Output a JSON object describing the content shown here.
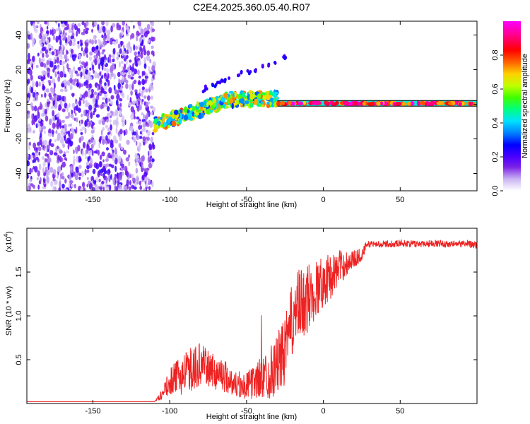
{
  "title": "C2E4.2025.360.05.40.R07",
  "colors": {
    "snr_line": "#ee2222",
    "axis": "#000000",
    "background": "#ffffff",
    "tone_line": "#000000"
  },
  "chart_data": [
    {
      "type": "heatmap",
      "name": "spectrogram",
      "xlabel": "Height of straight line (km)",
      "ylabel": "Frequency (Hz)",
      "xlim": [
        -193,
        100
      ],
      "ylim": [
        -50,
        48
      ],
      "xticks": [
        -150,
        -100,
        -50,
        0,
        50
      ],
      "xtick_labels": [
        "-150",
        "-100",
        "-50",
        "0",
        "50"
      ],
      "yticks": [
        -40,
        -20,
        0,
        20,
        40
      ],
      "ytick_labels": [
        "-40",
        "-20",
        "0",
        "20",
        "40"
      ],
      "colorbar": {
        "label": "Normalized spectral amplitude",
        "range": [
          0,
          1
        ],
        "ticks": [
          0.0,
          0.2,
          0.4,
          0.6,
          0.8
        ],
        "tick_labels": [
          "0.0",
          "0.2",
          "0.4",
          "0.6",
          "0.8"
        ],
        "colormap": [
          "#ffffff",
          "#c9b3f2",
          "#7b22e6",
          "#4b00ff",
          "#0000ff",
          "#0080ff",
          "#00e0ff",
          "#00ff80",
          "#40ff00",
          "#c0ff00",
          "#ffd000",
          "#ff6000",
          "#ff0000",
          "#ff0080",
          "#ff00ff"
        ]
      },
      "regions": [
        {
          "description": "noise",
          "x": [
            -193,
            -110
          ],
          "y": [
            -50,
            48
          ],
          "amplitude": [
            0.05,
            0.25
          ]
        },
        {
          "description": "signal onset",
          "x": [
            -110,
            -30
          ],
          "frequency_center": [
            -12,
            3
          ],
          "amplitude": [
            0.3,
            0.8
          ]
        },
        {
          "description": "stable tone",
          "x": [
            -30,
            100
          ],
          "frequency": 0.5,
          "amplitude": [
            0.7,
            1.0
          ]
        }
      ]
    },
    {
      "type": "line",
      "name": "snr",
      "xlabel": "Height of straight line (km)",
      "ylabel": "SNR (10 * v/v)",
      "scale_note": "(x10",
      "scale_exponent": "4",
      "xlim": [
        -193,
        100
      ],
      "ylim": [
        0,
        2.0
      ],
      "xticks": [
        -150,
        -100,
        -50,
        0,
        50
      ],
      "xtick_labels": [
        "-150",
        "-100",
        "-50",
        "0",
        "50"
      ],
      "yticks": [
        0.5,
        1.0,
        1.5
      ],
      "ytick_labels": [
        "0.5",
        "1.0",
        "1.5"
      ],
      "x": [
        -193,
        -150,
        -110,
        -105,
        -100,
        -95,
        -90,
        -85,
        -80,
        -75,
        -70,
        -65,
        -60,
        -55,
        -50,
        -45,
        -40,
        -35,
        -30,
        -25,
        -22,
        -20,
        -15,
        -10,
        -5,
        0,
        5,
        10,
        15,
        20,
        25,
        28,
        30,
        40,
        50,
        60,
        70,
        80,
        90,
        95,
        100
      ],
      "values": [
        0.02,
        0.02,
        0.02,
        0.1,
        0.25,
        0.3,
        0.35,
        0.4,
        0.45,
        0.4,
        0.35,
        0.33,
        0.25,
        0.2,
        0.2,
        0.25,
        0.3,
        0.35,
        0.45,
        0.6,
        0.8,
        1.0,
        1.1,
        1.2,
        1.3,
        1.4,
        1.45,
        1.55,
        1.6,
        1.65,
        1.7,
        1.8,
        1.82,
        1.82,
        1.83,
        1.82,
        1.83,
        1.82,
        1.82,
        1.83,
        1.8
      ],
      "noise_amplitude": [
        0.0,
        0.0,
        0.0,
        0.05,
        0.15,
        0.2,
        0.25,
        0.25,
        0.25,
        0.2,
        0.2,
        0.2,
        0.15,
        0.15,
        0.15,
        0.2,
        0.25,
        0.3,
        0.35,
        0.4,
        0.4,
        0.45,
        0.45,
        0.4,
        0.35,
        0.3,
        0.25,
        0.2,
        0.15,
        0.1,
        0.08,
        0.05,
        0.04,
        0.04,
        0.04,
        0.04,
        0.04,
        0.04,
        0.04,
        0.04,
        0.04
      ]
    }
  ]
}
